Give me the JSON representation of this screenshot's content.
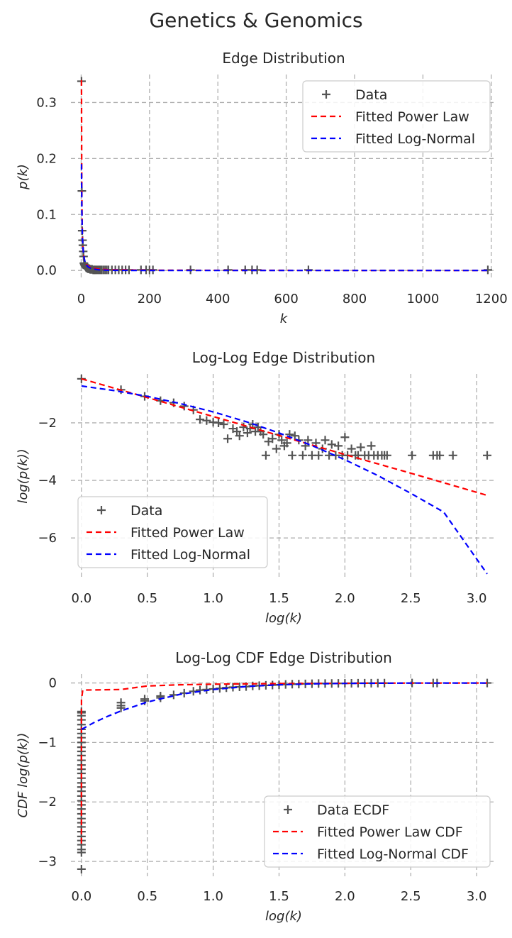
{
  "figure": {
    "title": "Genetics & Genomics"
  },
  "chart_data": [
    {
      "type": "scatter",
      "title": "Edge Distribution",
      "xlabel": "k",
      "ylabel": "p(k)",
      "xlim": [
        -30,
        1215
      ],
      "ylim": [
        -0.015,
        0.35
      ],
      "xticks": [
        0,
        200,
        400,
        600,
        800,
        1000,
        1200
      ],
      "yticks": [
        0.0,
        0.1,
        0.2,
        0.3
      ],
      "xtick_labels": [
        "0",
        "200",
        "400",
        "600",
        "800",
        "1000",
        "1200"
      ],
      "ytick_labels": [
        "0.0",
        "0.1",
        "0.2",
        "0.3"
      ],
      "grid": true,
      "legend_position": "top-right",
      "series": [
        {
          "name": "Data",
          "kind": "scatter",
          "marker": "+",
          "color": "#555555",
          "x": [
            1,
            2,
            3,
            4,
            5,
            6,
            7,
            8,
            9,
            10,
            11,
            12,
            13,
            14,
            15,
            16,
            17,
            18,
            20,
            22,
            24,
            26,
            28,
            30,
            32,
            35,
            38,
            41,
            44,
            48,
            52,
            56,
            60,
            65,
            70,
            75,
            80,
            90,
            100,
            110,
            120,
            130,
            140,
            175,
            190,
            200,
            210,
            320,
            430,
            480,
            500,
            515,
            665,
            1190
          ],
          "y": [
            0.338,
            0.142,
            0.071,
            0.054,
            0.045,
            0.034,
            0.025,
            0.013,
            0.011,
            0.01,
            0.009,
            0.008,
            0.007,
            0.006,
            0.005,
            0.005,
            0.004,
            0.004,
            0.003,
            0.003,
            0.003,
            0.002,
            0.002,
            0.002,
            0.002,
            0.001,
            0.001,
            0.001,
            0.001,
            0.001,
            0.001,
            0.001,
            0.001,
            0.001,
            0.001,
            0.001,
            0.001,
            0.001,
            0.001,
            0.001,
            0.001,
            0.001,
            0.001,
            0.001,
            0.001,
            0.001,
            0.001,
            0.001,
            0.001,
            0.001,
            0.001,
            0.001,
            0.001,
            0.001
          ]
        },
        {
          "name": "Fitted Power Law",
          "kind": "line",
          "color": "#ff0000",
          "x": [
            1,
            1.5,
            2,
            3,
            4,
            5,
            7,
            10,
            15,
            20,
            30,
            50,
            75,
            100,
            150,
            200,
            300,
            500,
            800,
            1190
          ],
          "y": [
            0.34,
            0.2,
            0.14,
            0.082,
            0.057,
            0.043,
            0.028,
            0.018,
            0.011,
            0.0075,
            0.0045,
            0.0025,
            0.0015,
            0.0011,
            0.0007,
            0.0005,
            0.0003,
            0.0002,
            0.0001,
            0.0001
          ]
        },
        {
          "name": "Fitted Log-Normal",
          "kind": "line",
          "color": "#0000ff",
          "x": [
            1,
            1.5,
            2,
            3,
            4,
            5,
            7,
            10,
            15,
            20,
            30,
            50,
            75,
            100,
            150,
            200,
            300,
            500,
            800,
            1190
          ],
          "y": [
            0.19,
            0.14,
            0.11,
            0.075,
            0.056,
            0.043,
            0.029,
            0.018,
            0.01,
            0.0065,
            0.0033,
            0.0012,
            0.0005,
            0.0002,
            0.0001,
            0,
            0,
            0,
            0,
            0
          ]
        }
      ]
    },
    {
      "type": "scatter",
      "title": "Log-Log Edge Distribution",
      "xlabel": "log(k)",
      "ylabel": "log(p(k))",
      "xlim": [
        -0.08,
        3.15
      ],
      "ylim": [
        -7.4,
        -0.3
      ],
      "xticks": [
        0.0,
        0.5,
        1.0,
        1.5,
        2.0,
        2.5,
        3.0
      ],
      "yticks": [
        -6,
        -4,
        -2
      ],
      "xtick_labels": [
        "0.0",
        "0.5",
        "1.0",
        "1.5",
        "2.0",
        "2.5",
        "3.0"
      ],
      "ytick_labels": [
        "−6",
        "−4",
        "−2"
      ],
      "grid": true,
      "legend_position": "bottom-left",
      "series": [
        {
          "name": "Data",
          "kind": "scatter",
          "marker": "+",
          "color": "#555555",
          "x": [
            0.0,
            0.3,
            0.48,
            0.6,
            0.7,
            0.78,
            0.85,
            0.9,
            0.95,
            1.0,
            1.04,
            1.08,
            1.11,
            1.15,
            1.18,
            1.2,
            1.23,
            1.26,
            1.28,
            1.3,
            1.32,
            1.34,
            1.36,
            1.38,
            1.4,
            1.42,
            1.45,
            1.48,
            1.5,
            1.52,
            1.54,
            1.56,
            1.58,
            1.6,
            1.62,
            1.65,
            1.68,
            1.7,
            1.72,
            1.75,
            1.78,
            1.8,
            1.83,
            1.85,
            1.88,
            1.9,
            1.93,
            1.95,
            1.98,
            2.0,
            2.02,
            2.05,
            2.08,
            2.1,
            2.12,
            2.15,
            2.18,
            2.2,
            2.22,
            2.25,
            2.28,
            2.3,
            2.32,
            2.51,
            2.67,
            2.7,
            2.72,
            2.82,
            3.08
          ],
          "y": [
            -0.47,
            -0.85,
            -1.08,
            -1.23,
            -1.3,
            -1.42,
            -1.55,
            -1.88,
            -1.92,
            -1.98,
            -2.0,
            -2.05,
            -2.55,
            -2.2,
            -2.3,
            -2.45,
            -2.15,
            -2.35,
            -2.2,
            -2.05,
            -2.3,
            -2.15,
            -2.3,
            -2.4,
            -3.13,
            -2.65,
            -2.55,
            -2.9,
            -2.4,
            -2.6,
            -2.8,
            -2.7,
            -2.4,
            -3.13,
            -2.45,
            -2.6,
            -3.13,
            -2.8,
            -2.6,
            -3.13,
            -2.7,
            -3.13,
            -2.9,
            -2.6,
            -3.13,
            -2.75,
            -3.13,
            -2.8,
            -3.13,
            -2.5,
            -3.13,
            -2.9,
            -3.13,
            -3.13,
            -2.85,
            -3.13,
            -3.13,
            -2.8,
            -3.13,
            -3.13,
            -3.13,
            -3.13,
            -3.13,
            -3.13,
            -3.13,
            -3.13,
            -3.13,
            -3.13,
            -3.13
          ]
        },
        {
          "name": "Fitted Power Law",
          "kind": "line",
          "color": "#ff0000",
          "x": [
            0.0,
            0.5,
            1.0,
            1.5,
            2.0,
            2.5,
            3.08
          ],
          "y": [
            -0.47,
            -1.12,
            -1.78,
            -2.44,
            -3.1,
            -3.75,
            -4.52
          ]
        },
        {
          "name": "Fitted Log-Normal",
          "kind": "line",
          "color": "#0000ff",
          "x": [
            0.0,
            0.25,
            0.5,
            0.75,
            1.0,
            1.25,
            1.5,
            1.75,
            2.0,
            2.25,
            2.5,
            2.75,
            3.08
          ],
          "y": [
            -0.72,
            -0.88,
            -1.08,
            -1.33,
            -1.62,
            -1.96,
            -2.35,
            -2.79,
            -3.28,
            -3.83,
            -4.45,
            -5.1,
            -7.25
          ]
        }
      ]
    },
    {
      "type": "scatter",
      "title": "Log-Log CDF Edge Distribution",
      "xlabel": "log(k)",
      "ylabel": "CDF log(p(k))",
      "xlim": [
        -0.08,
        3.15
      ],
      "ylim": [
        -3.25,
        0.15
      ],
      "xticks": [
        0.0,
        0.5,
        1.0,
        1.5,
        2.0,
        2.5,
        3.0
      ],
      "yticks": [
        -3,
        -2,
        -1,
        0
      ],
      "xtick_labels": [
        "0.0",
        "0.5",
        "1.0",
        "1.5",
        "2.0",
        "2.5",
        "3.0"
      ],
      "ytick_labels": [
        "−3",
        "−2",
        "−1",
        "0"
      ],
      "grid": true,
      "legend_position": "bottom-right",
      "series": [
        {
          "name": "Data ECDF",
          "kind": "scatter",
          "marker": "+",
          "color": "#555555",
          "x": [
            0.0,
            0.0,
            0.0,
            0.0,
            0.0,
            0.0,
            0.0,
            0.0,
            0.0,
            0.0,
            0.0,
            0.0,
            0.0,
            0.0,
            0.0,
            0.0,
            0.0,
            0.0,
            0.0,
            0.0,
            0.0,
            0.0,
            0.0,
            0.0,
            0.0,
            0.0,
            0.0,
            0.0,
            0.0,
            0.0,
            0.0,
            0.0,
            0.0,
            0.0,
            0.0,
            0.3,
            0.3,
            0.3,
            0.48,
            0.48,
            0.6,
            0.6,
            0.7,
            0.78,
            0.85,
            0.9,
            0.95,
            1.0,
            1.05,
            1.1,
            1.15,
            1.2,
            1.25,
            1.3,
            1.35,
            1.4,
            1.45,
            1.5,
            1.55,
            1.6,
            1.65,
            1.7,
            1.75,
            1.8,
            1.85,
            1.9,
            1.95,
            2.0,
            2.05,
            2.1,
            2.15,
            2.2,
            2.25,
            2.3,
            2.51,
            2.67,
            2.7,
            3.08
          ],
          "y": [
            -0.48,
            -0.55,
            -0.62,
            -0.7,
            -0.78,
            -0.85,
            -0.92,
            -1.0,
            -1.08,
            -1.15,
            -1.22,
            -1.3,
            -1.38,
            -1.45,
            -1.52,
            -1.6,
            -1.68,
            -1.75,
            -1.82,
            -1.9,
            -1.98,
            -2.05,
            -2.12,
            -2.2,
            -2.28,
            -2.35,
            -2.42,
            -2.5,
            -2.58,
            -2.65,
            -2.72,
            -2.8,
            -2.85,
            -3.13,
            -0.5,
            -0.33,
            -0.38,
            -0.42,
            -0.27,
            -0.3,
            -0.22,
            -0.25,
            -0.2,
            -0.17,
            -0.14,
            -0.12,
            -0.11,
            -0.1,
            -0.09,
            -0.08,
            -0.07,
            -0.065,
            -0.06,
            -0.05,
            -0.045,
            -0.04,
            -0.035,
            -0.03,
            -0.025,
            -0.02,
            -0.018,
            -0.015,
            -0.012,
            -0.01,
            -0.009,
            -0.008,
            -0.007,
            -0.006,
            -0.005,
            -0.004,
            -0.003,
            -0.003,
            -0.002,
            -0.002,
            -0.001,
            -0.001,
            -0.001,
            0.0
          ]
        },
        {
          "name": "Fitted Power Law CDF",
          "kind": "line",
          "color": "#ff0000",
          "x": [
            0.0,
            0.0,
            0.01,
            0.3,
            0.5,
            0.75,
            1.0,
            1.5,
            2.0,
            2.5,
            3.08
          ],
          "y": [
            -2.7,
            -0.28,
            -0.12,
            -0.11,
            -0.05,
            -0.03,
            -0.02,
            -0.01,
            -0.005,
            -0.002,
            0.0
          ]
        },
        {
          "name": "Fitted Log-Normal CDF",
          "kind": "line",
          "color": "#0000ff",
          "x": [
            0.0,
            0.1,
            0.2,
            0.3,
            0.5,
            0.75,
            1.0,
            1.25,
            1.5,
            1.75,
            2.0,
            2.5,
            3.08
          ],
          "y": [
            -0.78,
            -0.66,
            -0.56,
            -0.47,
            -0.32,
            -0.19,
            -0.11,
            -0.06,
            -0.03,
            -0.015,
            -0.007,
            -0.001,
            0.0
          ]
        }
      ]
    }
  ]
}
